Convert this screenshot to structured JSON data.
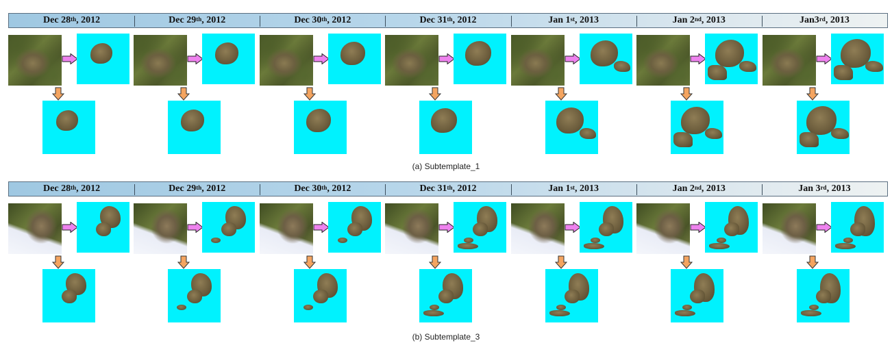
{
  "figure": {
    "dates": [
      {
        "main": "Dec 28",
        "sup": "th",
        "year": ", 2012"
      },
      {
        "main": "Dec 29",
        "sup": "th",
        "year": ", 2012"
      },
      {
        "main": "Dec 30",
        "sup": "th",
        "year": ", 2012"
      },
      {
        "main": "Dec 31",
        "sup": "th",
        "year": ", 2012"
      },
      {
        "main": "Jan 1",
        "sup": "st",
        "year": ", 2013"
      },
      {
        "main": "Jan 2",
        "sup": "nd",
        "year": ", 2013"
      },
      {
        "main": "Jan3",
        "sup": "rd",
        "year": ", 2013"
      }
    ],
    "dates_b": [
      {
        "main": "Dec 28",
        "sup": "th",
        "year": ", 2012"
      },
      {
        "main": "Dec 29",
        "sup": "th",
        "year": ", 2012"
      },
      {
        "main": "Dec 30",
        "sup": "th",
        "year": ", 2012"
      },
      {
        "main": "Dec 31",
        "sup": "th",
        "year": ", 2012"
      },
      {
        "main": "Jan 1",
        "sup": "st",
        "year": ", 2013"
      },
      {
        "main": "Jan 2",
        "sup": "nd",
        "year": ", 2013"
      },
      {
        "main": "Jan 3",
        "sup": "rd",
        "year": ", 2013"
      }
    ],
    "caption_a": "(a) Subtemplate_1",
    "caption_b": "(b) Subtemplate_3",
    "colors": {
      "mask_background": "#00f2fe",
      "arrow_right": "#ee82ee",
      "arrow_down": "#f4a460",
      "header_gradient_start": "#9fc8e2",
      "header_gradient_end": "#eef2f2"
    },
    "icons": {
      "right": "right-arrow-icon",
      "down": "down-arrow-icon"
    }
  }
}
